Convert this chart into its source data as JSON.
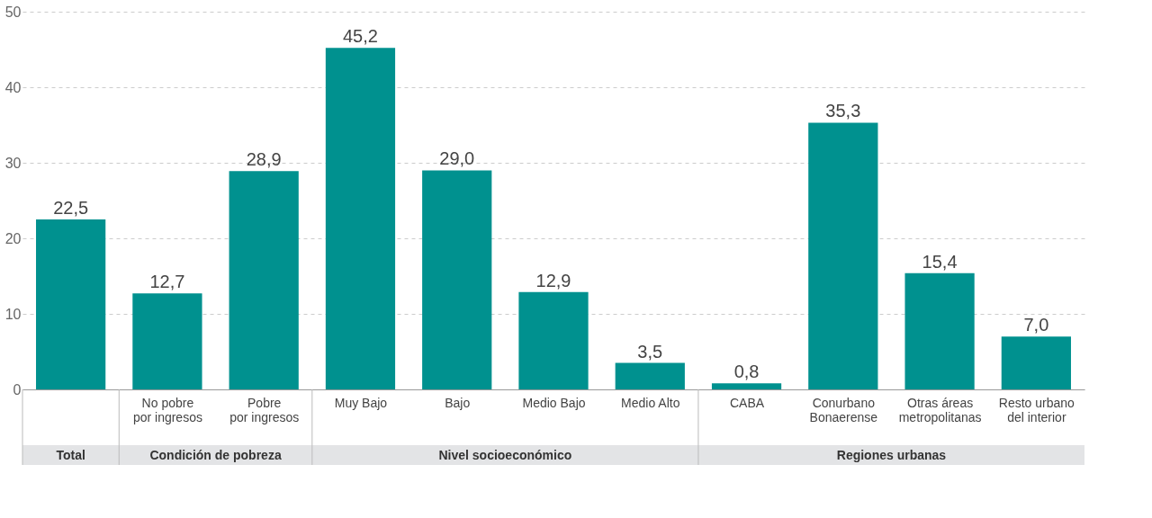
{
  "chart_data": {
    "type": "bar",
    "categories": [
      null,
      "No pobre\npor ingresos",
      "Pobre\npor ingresos",
      "Muy Bajo",
      "Bajo",
      "Medio Bajo",
      "Medio Alto",
      "CABA",
      "Conurbano\nBonaerense",
      "Otras áreas\nmetropolitanas",
      "Resto urbano\ndel interior"
    ],
    "values": [
      22.5,
      12.7,
      28.9,
      45.2,
      29.0,
      12.9,
      3.5,
      0.8,
      35.3,
      15.4,
      7.0
    ],
    "value_labels": [
      "22,5",
      "12,7",
      "28,9",
      "45,2",
      "29,0",
      "12,9",
      "3,5",
      "0,8",
      "35,3",
      "15,4",
      "7,0"
    ],
    "color": "#00918f",
    "ylim": [
      0,
      50
    ],
    "yticks": [
      0,
      10,
      20,
      30,
      40,
      50
    ],
    "grid": "y",
    "annotations": [
      "Total",
      "Condición de pobreza",
      "Nivel socioeconómico",
      "Regiones urbanas"
    ]
  }
}
